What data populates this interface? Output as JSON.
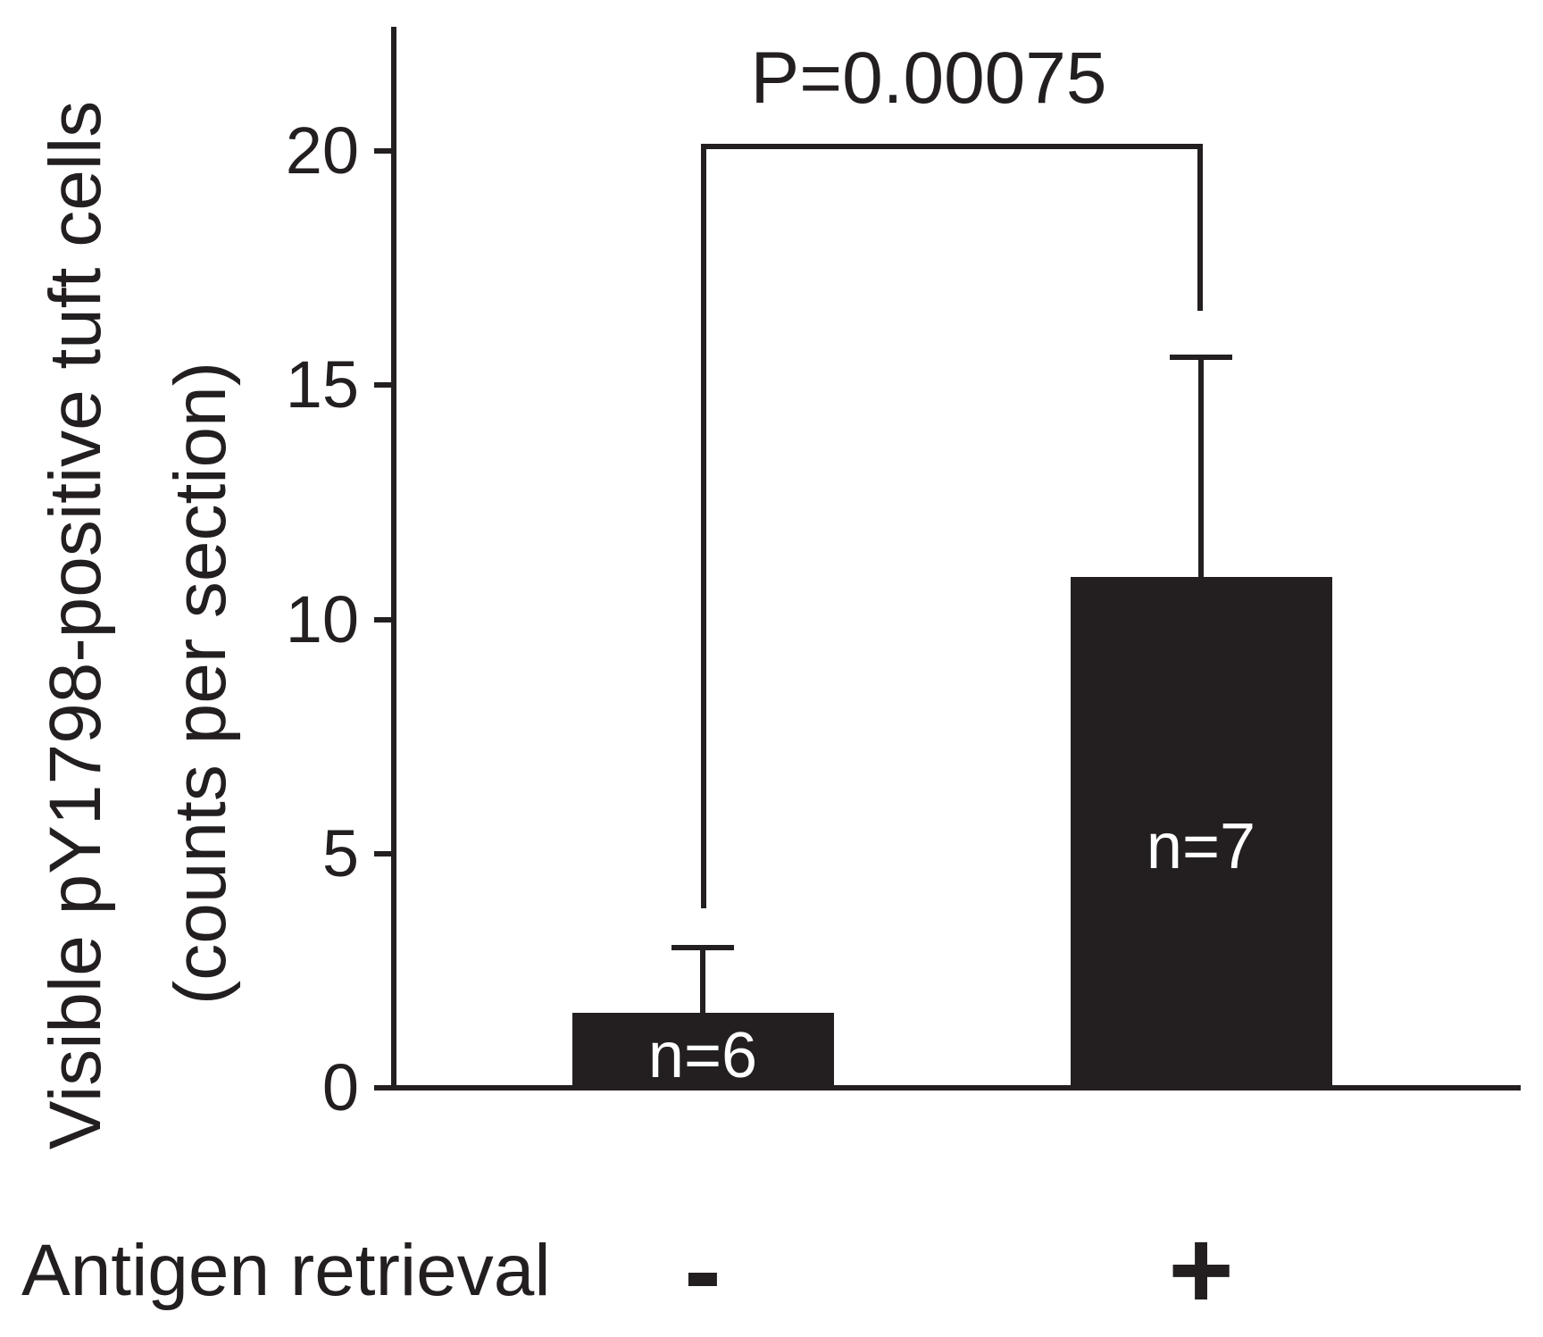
{
  "figure": {
    "p_value_label": "P=0.00075",
    "x_axis_label": "Antigen retrieval",
    "y_axis_label_line1": "Visible pY1798-positive tuft cells",
    "y_axis_label_line2": "(counts per section)"
  },
  "chart_data": {
    "type": "bar",
    "title": "",
    "xlabel": "Antigen retrieval",
    "ylabel": "Visible pY1798-positive tuft cells (counts per section)",
    "categories": [
      "-",
      "+"
    ],
    "values": [
      1.6,
      10.9
    ],
    "error_cap_tops": [
      3.0,
      15.6
    ],
    "errors_upper": [
      1.4,
      4.7
    ],
    "bar_counts": [
      "n=6",
      "n=7"
    ],
    "yticks": [
      0,
      5,
      10,
      15,
      20
    ],
    "ylim": [
      0,
      22.6
    ],
    "grid": false,
    "legend_position": "none",
    "bar_color": "#231f20",
    "bar_label_color": "#ffffff",
    "significance": {
      "label": "P=0.00075",
      "between": [
        "-",
        "+"
      ]
    }
  }
}
